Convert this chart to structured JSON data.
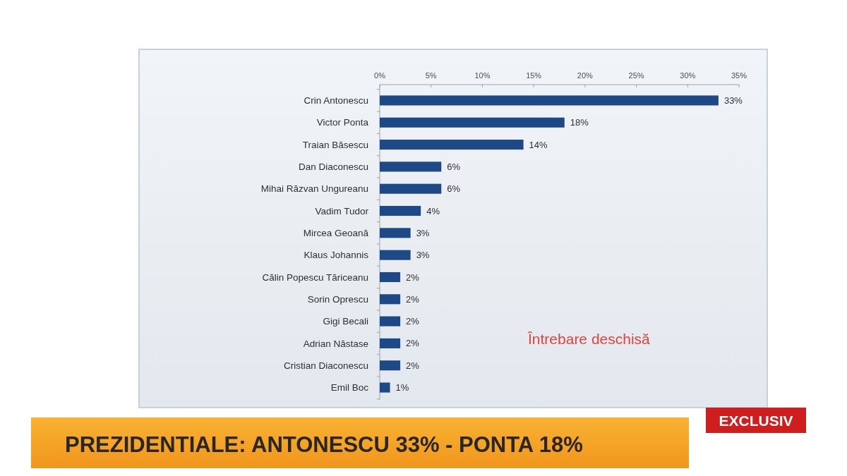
{
  "chart_data": {
    "type": "bar",
    "orientation": "horizontal",
    "categories": [
      "Crin Antonescu",
      "Victor Ponta",
      "Traian Băsescu",
      "Dan Diaconescu",
      "Mihai Răzvan Ungureanu",
      "Vadim Tudor",
      "Mircea Geoană",
      "Klaus Johannis",
      "Călin Popescu Tăriceanu",
      "Sorin Oprescu",
      "Gigi Becali",
      "Adrian Năstase",
      "Cristian Diaconescu",
      "Emil Boc"
    ],
    "values": [
      33,
      18,
      14,
      6,
      6,
      4,
      3,
      3,
      2,
      2,
      2,
      2,
      2,
      1
    ],
    "value_labels": [
      "33%",
      "18%",
      "14%",
      "6%",
      "6%",
      "4%",
      "3%",
      "3%",
      "2%",
      "2%",
      "2%",
      "2%",
      "2%",
      "1%"
    ],
    "color": "#1d4a87",
    "xlim": [
      0,
      35
    ],
    "xticks": [
      {
        "value": 0,
        "label": "0%"
      },
      {
        "value": 5,
        "label": "5%"
      },
      {
        "value": 10,
        "label": "10%"
      },
      {
        "value": 15,
        "label": "15%"
      },
      {
        "value": 20,
        "label": "20%"
      },
      {
        "value": 25,
        "label": "25%"
      },
      {
        "value": 30,
        "label": "30%"
      },
      {
        "value": 35,
        "label": "35%"
      }
    ],
    "annotations": [
      "Întrebare deschisă",
      "PREZIDENTIALE: ANTONESCU 33% - PONTA 18%",
      "EXCLUSIV"
    ]
  }
}
